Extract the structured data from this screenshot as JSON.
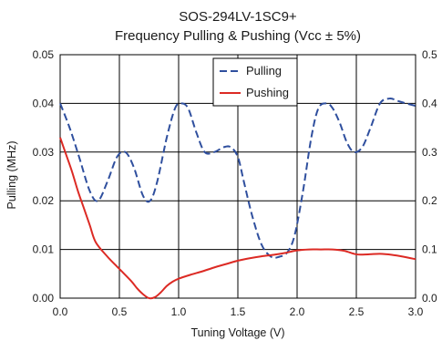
{
  "chart_data": {
    "type": "line",
    "title": "SOS-294LV-1SC9+",
    "subtitle": "Frequency Pulling & Pushing (Vcc ± 5%)",
    "xlabel": "Tuning Voltage (V)",
    "ylabel": "Pulling (MHz)",
    "xlim": [
      0,
      3
    ],
    "ylim": [
      0,
      0.05
    ],
    "y2lim": [
      0,
      0.5
    ],
    "grid": true,
    "legend_position": "top-center",
    "x_ticks": [
      "0.0",
      "0.5",
      "1.0",
      "1.5",
      "2.0",
      "2.5",
      "3.0"
    ],
    "y_ticks": [
      "0.00",
      "0.01",
      "0.02",
      "0.03",
      "0.04",
      "0.05"
    ],
    "y2_ticks": [
      "0.0",
      "0.1",
      "0.2",
      "0.3",
      "0.4",
      "0.5"
    ],
    "series": [
      {
        "name": "Pulling",
        "color": "#2f4f9e",
        "dash": true,
        "axis": "left",
        "x": [
          0,
          0.08,
          0.16,
          0.25,
          0.32,
          0.4,
          0.48,
          0.55,
          0.62,
          0.7,
          0.76,
          0.82,
          0.9,
          0.97,
          1.02,
          1.08,
          1.15,
          1.22,
          1.3,
          1.38,
          1.44,
          1.5,
          1.55,
          1.62,
          1.7,
          1.78,
          1.85,
          1.92,
          1.98,
          2.05,
          2.12,
          2.18,
          2.25,
          2.3,
          2.36,
          2.42,
          2.48,
          2.55,
          2.62,
          2.7,
          2.78,
          2.85,
          2.92,
          3.0
        ],
        "values": [
          0.04,
          0.035,
          0.029,
          0.022,
          0.02,
          0.024,
          0.029,
          0.03,
          0.027,
          0.021,
          0.02,
          0.024,
          0.033,
          0.039,
          0.04,
          0.039,
          0.034,
          0.03,
          0.03,
          0.031,
          0.031,
          0.029,
          0.024,
          0.017,
          0.011,
          0.0085,
          0.0085,
          0.0095,
          0.013,
          0.022,
          0.033,
          0.039,
          0.04,
          0.039,
          0.036,
          0.032,
          0.03,
          0.031,
          0.035,
          0.04,
          0.041,
          0.0405,
          0.04,
          0.0395
        ]
      },
      {
        "name": "Pushing",
        "color": "#dc2a24",
        "dash": false,
        "axis": "right",
        "x": [
          0,
          0.05,
          0.1,
          0.15,
          0.2,
          0.25,
          0.3,
          0.4,
          0.5,
          0.6,
          0.65,
          0.7,
          0.75,
          0.8,
          0.85,
          0.9,
          0.95,
          1.0,
          1.1,
          1.2,
          1.3,
          1.4,
          1.5,
          1.6,
          1.7,
          1.8,
          1.9,
          2.0,
          2.1,
          2.2,
          2.3,
          2.4,
          2.5,
          2.6,
          2.7,
          2.8,
          2.9,
          3.0
        ],
        "values": [
          0.33,
          0.295,
          0.26,
          0.22,
          0.185,
          0.15,
          0.115,
          0.085,
          0.06,
          0.035,
          0.02,
          0.008,
          0.0,
          0.002,
          0.012,
          0.025,
          0.034,
          0.04,
          0.048,
          0.055,
          0.063,
          0.07,
          0.077,
          0.082,
          0.086,
          0.089,
          0.093,
          0.098,
          0.1,
          0.1,
          0.1,
          0.097,
          0.09,
          0.09,
          0.091,
          0.089,
          0.085,
          0.08
        ]
      }
    ]
  }
}
